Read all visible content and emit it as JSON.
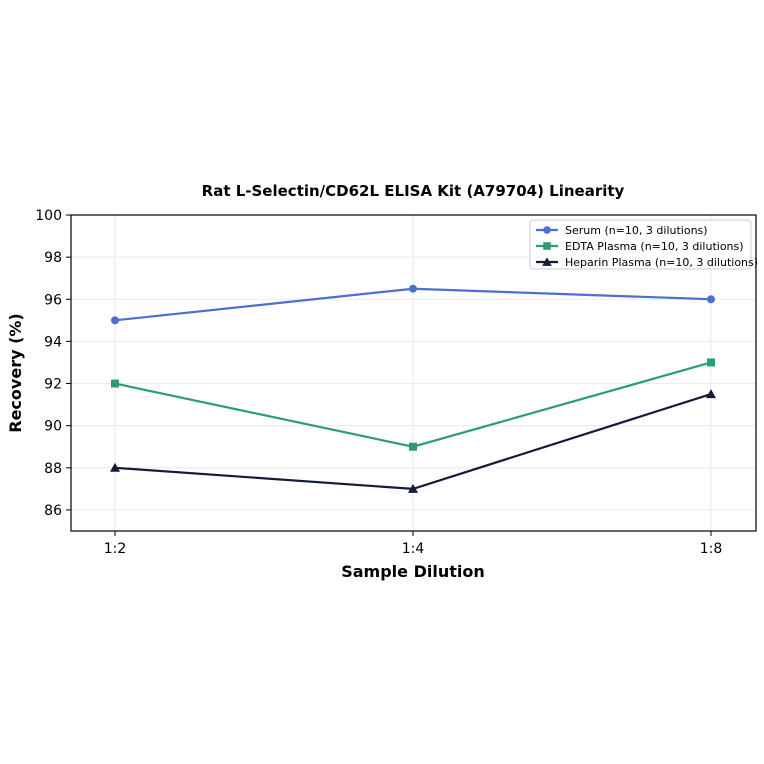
{
  "chart_data": {
    "type": "line",
    "title": "Rat L-Selectin/CD62L ELISA Kit (A79704) Linearity",
    "xlabel": "Sample Dilution",
    "ylabel": "Recovery (%)",
    "categories": [
      "1:2",
      "1:4",
      "1:8"
    ],
    "ylim": [
      85,
      100
    ],
    "yticks": [
      86,
      88,
      90,
      92,
      94,
      96,
      98,
      100
    ],
    "grid": true,
    "legend_position": "top-right",
    "series": [
      {
        "name": "Serum (n=10, 3 dilutions)",
        "values": [
          95,
          96.5,
          96
        ],
        "color": "#4C6FD0",
        "marker": "circle"
      },
      {
        "name": "EDTA Plasma (n=10, 3 dilutions)",
        "values": [
          92,
          89,
          93
        ],
        "color": "#2A9D77",
        "marker": "square"
      },
      {
        "name": "Heparin Plasma (n=10, 3 dilutions)",
        "values": [
          88,
          87,
          91.5
        ],
        "color": "#141C3A",
        "marker": "triangle"
      }
    ]
  }
}
